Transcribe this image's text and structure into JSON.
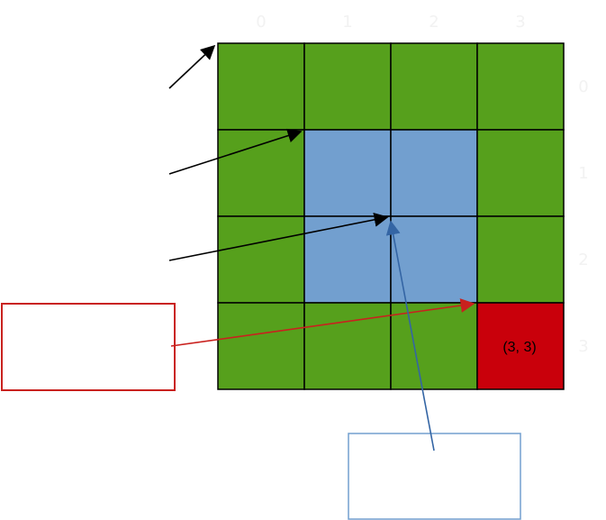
{
  "grid": {
    "rows": 4,
    "cols": 4,
    "cells": [
      [
        "green",
        "green",
        "green",
        "green"
      ],
      [
        "green",
        "blue",
        "blue",
        "green"
      ],
      [
        "green",
        "blue",
        "blue",
        "green"
      ],
      [
        "green",
        "green",
        "green",
        "red"
      ]
    ],
    "highlight_label": "(3, 3)",
    "column_labels": [
      "0",
      "1",
      "2",
      "3"
    ],
    "row_labels": [
      "0",
      "1",
      "2",
      "3"
    ]
  },
  "colors": {
    "green": "#56a01c",
    "blue": "#729fcf",
    "red": "#c9000b",
    "grid_line": "#000000",
    "axis_label": "#f2f2f2",
    "red_box": "#c9211e",
    "blue_box": "#729fcf",
    "black_arrow": "#000000",
    "red_arrow": "#c9211e",
    "blue_arrow": "#3465a4"
  },
  "annotations": {
    "red_box_text": "",
    "blue_box_text": ""
  }
}
